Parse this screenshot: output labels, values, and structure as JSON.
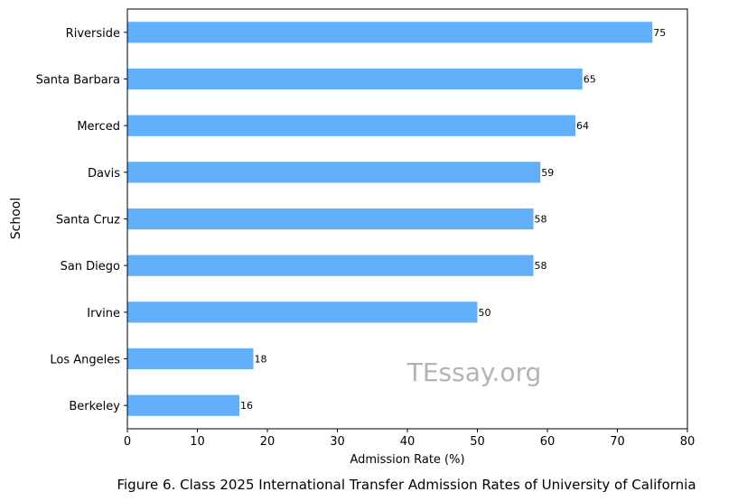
{
  "chart_data": {
    "type": "bar",
    "orientation": "horizontal",
    "categories": [
      "Riverside",
      "Santa Barbara",
      "Merced",
      "Davis",
      "Santa Cruz",
      "San Diego",
      "Irvine",
      "Los Angeles",
      "Berkeley"
    ],
    "values": [
      75,
      65,
      64,
      59,
      58,
      58,
      50,
      18,
      16
    ],
    "xlabel": "Admission Rate (%)",
    "ylabel": "School",
    "xlim": [
      0,
      80
    ],
    "xticks": [
      0,
      10,
      20,
      30,
      40,
      50,
      60,
      70,
      80
    ],
    "grid": false,
    "bar_color": "#60aff8"
  },
  "watermark": "TEssay.org",
  "caption": "Figure 6. Class 2025 International Transfer Admission Rates of University of California"
}
